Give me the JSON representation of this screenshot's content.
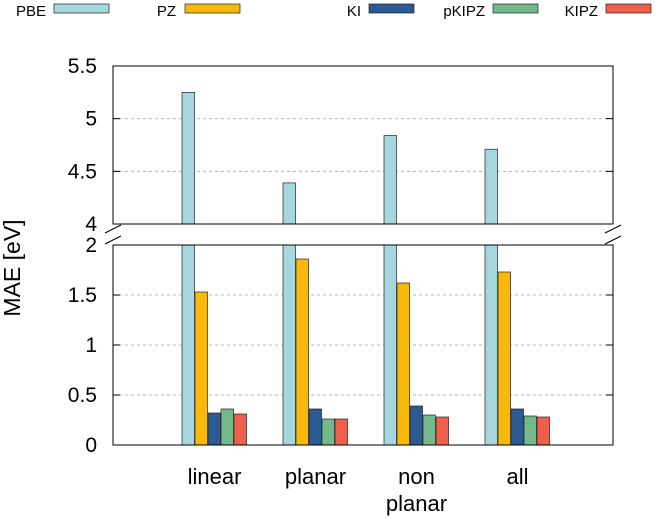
{
  "chart_data": {
    "type": "bar",
    "ylabel": "MAE [eV]",
    "categories": [
      "linear",
      "planar",
      "non\nplanar",
      "all"
    ],
    "series": [
      {
        "name": "PBE",
        "color": "#a6d6de",
        "values": [
          5.25,
          4.39,
          4.84,
          4.71
        ]
      },
      {
        "name": "PZ",
        "color": "#f9b90a",
        "values": [
          1.53,
          1.86,
          1.62,
          1.73
        ]
      },
      {
        "name": "KI",
        "color": "#2e5a94",
        "values": [
          0.32,
          0.36,
          0.39,
          0.36
        ]
      },
      {
        "name": "pKIPZ",
        "color": "#73b98c",
        "values": [
          0.36,
          0.26,
          0.3,
          0.29
        ]
      },
      {
        "name": "KIPZ",
        "color": "#ee5f4c",
        "values": [
          0.31,
          0.26,
          0.28,
          0.28
        ]
      }
    ],
    "axis_break": true,
    "upper_panel": {
      "ylim": [
        4,
        5.5
      ],
      "yticks": [
        "4",
        "4.5",
        "5",
        "5.5"
      ],
      "tick_values": [
        4,
        4.5,
        5,
        5.5
      ]
    },
    "lower_panel": {
      "ylim": [
        0,
        2
      ],
      "yticks": [
        "0",
        "0.5",
        "1",
        "1.5",
        "2"
      ],
      "tick_values": [
        0,
        0.5,
        1,
        1.5,
        2
      ]
    },
    "grid": true,
    "legend_position": "top"
  }
}
